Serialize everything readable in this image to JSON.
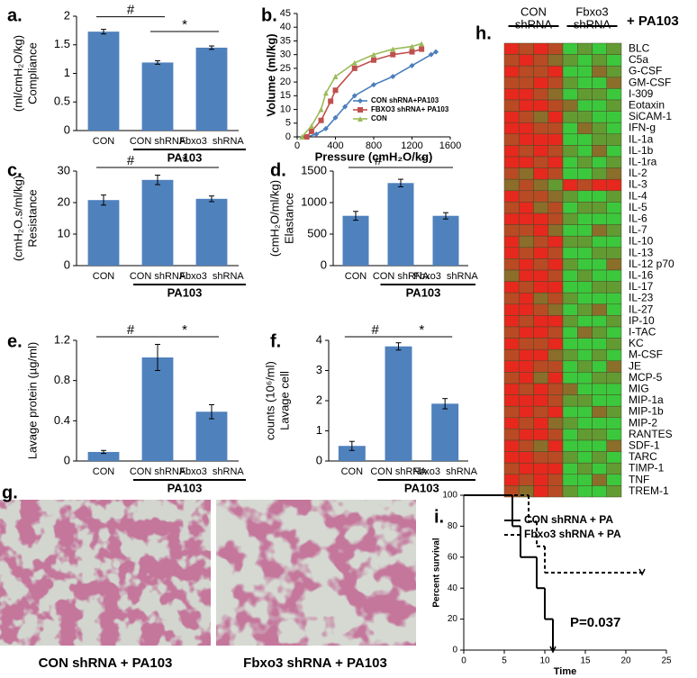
{
  "chart_data": [
    {
      "type": "bar",
      "letter": "a.",
      "ylabel": [
        "Compliance",
        "(ml/cmH₂O/kg)"
      ],
      "categories": [
        "CON",
        "CON shRNA",
        "Fbxo3  shRNA"
      ],
      "values": [
        1.73,
        1.19,
        1.45
      ],
      "errors": [
        0.04,
        0.03,
        0.03
      ],
      "ylim": [
        0,
        2
      ],
      "yticks": [
        0,
        0.5,
        1,
        1.5,
        2
      ],
      "color": "#4f81bd",
      "group_label": "PA103",
      "annotations": [
        "#",
        "*"
      ]
    },
    {
      "type": "line",
      "letter": "b.",
      "xlabel": "Pressure (cmH₂O/kg)",
      "ylabel": "Volume (ml/kg)",
      "xlim": [
        0,
        1600
      ],
      "xticks": [
        0,
        400,
        800,
        1200,
        1600
      ],
      "ylim": [
        0,
        45
      ],
      "yticks": [
        0,
        5,
        10,
        15,
        20,
        25,
        30,
        35,
        40,
        45
      ],
      "series": [
        {
          "name": "CON shRNA+PA103",
          "color": "#4a7ebb",
          "marker": "diamond",
          "x": [
            100,
            200,
            300,
            400,
            500,
            600,
            800,
            1000,
            1200,
            1400,
            1450
          ],
          "values": [
            0,
            1,
            3,
            7,
            11,
            15,
            19,
            22,
            26,
            30,
            31
          ]
        },
        {
          "name": "FBXO3 shRNA+ PA103",
          "color": "#c0504d",
          "marker": "square",
          "x": [
            100,
            150,
            250,
            350,
            400,
            600,
            800,
            1000,
            1200,
            1300
          ],
          "values": [
            0,
            2,
            6,
            13,
            17,
            25,
            28,
            30,
            31,
            32
          ]
        },
        {
          "name": "CON",
          "color": "#9bbb59",
          "marker": "triangle",
          "x": [
            50,
            150,
            250,
            300,
            400,
            600,
            800,
            1000,
            1200,
            1300
          ],
          "values": [
            0,
            4,
            10,
            16,
            22,
            27,
            30,
            32,
            33,
            34
          ]
        }
      ]
    },
    {
      "type": "bar",
      "letter": "c.",
      "ylabel": [
        "Resistance",
        "(cmH₂O.s/ml/kg)"
      ],
      "categories": [
        "CON",
        "CON shRNA",
        "Fbxo3  shRNA"
      ],
      "values": [
        20.8,
        27.2,
        21.2
      ],
      "errors": [
        1.6,
        1.5,
        0.9
      ],
      "ylim": [
        0,
        30
      ],
      "yticks": [
        0,
        10,
        20,
        30
      ],
      "color": "#4f81bd",
      "group_label": "PA103",
      "annotations": [
        "#",
        "*"
      ]
    },
    {
      "type": "bar",
      "letter": "d.",
      "ylabel": [
        "Elastance",
        "(cmH₂O/ml/kg)"
      ],
      "categories": [
        "CON",
        "CON shRNA",
        "Fbxo3  shRNA"
      ],
      "values": [
        790,
        1310,
        790
      ],
      "errors": [
        70,
        60,
        50
      ],
      "ylim": [
        0,
        1500
      ],
      "yticks": [
        0,
        500,
        1000,
        1500
      ],
      "color": "#4f81bd",
      "group_label": "PA103",
      "annotations": [
        "#",
        "*"
      ]
    },
    {
      "type": "bar",
      "letter": "e.",
      "ylabel": [
        "Lavage protein (µg/ml)"
      ],
      "categories": [
        "CON",
        "CON shRNA",
        "Fbxo3  shRNA"
      ],
      "values": [
        0.09,
        1.03,
        0.49
      ],
      "errors": [
        0.015,
        0.13,
        0.07
      ],
      "ylim": [
        0,
        1.2
      ],
      "yticks": [
        0,
        0.4,
        0.8,
        1.2
      ],
      "color": "#4f81bd",
      "group_label": "PA103",
      "annotations": [
        "#",
        "*"
      ]
    },
    {
      "type": "bar",
      "letter": "f.",
      "ylabel": [
        "Lavage cell",
        "counts (10⁶/ml)"
      ],
      "categories": [
        "CON",
        "CON shRNA",
        "Fbxo3  shRNA"
      ],
      "values": [
        0.5,
        3.8,
        1.9
      ],
      "errors": [
        0.15,
        0.12,
        0.17
      ],
      "ylim": [
        0,
        4
      ],
      "yticks": [
        0,
        1,
        2,
        3,
        4
      ],
      "color": "#4f81bd",
      "group_label": "PA103",
      "annotations": [
        "#",
        "*"
      ]
    },
    {
      "type": "heatmap",
      "letter": "h.",
      "group_labels": [
        [
          "CON",
          "shRNA"
        ],
        [
          "Fbxo3",
          "shRNA"
        ]
      ],
      "group_suffix": "+ PA103",
      "vlim": [
        -1,
        1
      ],
      "colors": [
        "#3cc83c",
        "#8a6e2a",
        "#e6281e"
      ],
      "rows": [
        "BLC",
        "C5a",
        "G-CSF",
        "GM-CSF",
        "I-309",
        "Eotaxin",
        "SiCAM-1",
        "IFN-g",
        "IL-1a",
        "IL-1b",
        "IL-1ra",
        "IL-2",
        "IL-3",
        "IL-4",
        "IL-5",
        "IL-6",
        "IL-7",
        "IL-10",
        "IL-13",
        "IL-12 p70",
        "IL-16",
        "IL-17",
        "IL-23",
        "IL-27",
        "IP-10",
        "I-TAC",
        "KC",
        "M-CSF",
        "JE",
        "MCP-5",
        "MIG",
        "MIP-1a",
        "MIP-1b",
        "MIP-2",
        "RANTES",
        "SDF-1",
        "TARC",
        "TIMP-1",
        "TNF",
        "TREM-1"
      ],
      "values": [
        [
          1,
          0.5,
          1,
          0.5,
          -1,
          -0.5,
          -1,
          -0.5
        ],
        [
          0.5,
          1,
          0.5,
          0,
          -0.5,
          -1,
          -0.5,
          -1
        ],
        [
          1,
          0.5,
          0.5,
          1,
          -1,
          -1,
          0,
          -0.5
        ],
        [
          0.5,
          0.5,
          1,
          0.5,
          -0.5,
          -1,
          -1,
          0
        ],
        [
          1,
          1,
          0.5,
          0,
          -1,
          -0.5,
          -0.5,
          -1
        ],
        [
          0.5,
          1,
          1,
          0.5,
          0,
          -1,
          -1,
          -0.5
        ],
        [
          1,
          0.5,
          0,
          1,
          -0.5,
          -0.5,
          -1,
          -1
        ],
        [
          1,
          1,
          0.5,
          0.5,
          -1,
          0,
          -0.5,
          -1
        ],
        [
          0.5,
          1,
          1,
          1,
          -1,
          -1,
          -0.5,
          -0.5
        ],
        [
          1,
          0.5,
          1,
          0.5,
          -0.5,
          -1,
          0,
          -1
        ],
        [
          1,
          1,
          0.5,
          1,
          -1,
          -0.5,
          -1,
          -0.5
        ],
        [
          0.5,
          0,
          1,
          0.5,
          -1,
          -1,
          -0.5,
          0
        ],
        [
          0,
          0.5,
          0,
          -0.5,
          1,
          0.5,
          1,
          1
        ],
        [
          1,
          0.5,
          0.5,
          0,
          -0.5,
          -1,
          -1,
          -0.5
        ],
        [
          0.5,
          1,
          0,
          0.5,
          -1,
          -0.5,
          -0.5,
          -1
        ],
        [
          1,
          1,
          1,
          0.5,
          -0.5,
          -1,
          -1,
          -1
        ],
        [
          0.5,
          0.5,
          1,
          0,
          -1,
          -1,
          0,
          -0.5
        ],
        [
          1,
          0,
          0.5,
          1,
          -0.5,
          -0.5,
          -1,
          -1
        ],
        [
          1,
          0.5,
          1,
          0.5,
          -1,
          -1,
          -0.5,
          -0.5
        ],
        [
          0.5,
          1,
          0.5,
          1,
          -0.5,
          -1,
          -1,
          0
        ],
        [
          0,
          1,
          1,
          0.5,
          -1,
          -0.5,
          -1,
          -1
        ],
        [
          1,
          0.5,
          1,
          1,
          -1,
          -1,
          -0.5,
          -0.5
        ],
        [
          0.5,
          1,
          0,
          0.5,
          -0.5,
          -1,
          -1,
          -1
        ],
        [
          1,
          1,
          0.5,
          0,
          -1,
          -0.5,
          0,
          -1
        ],
        [
          1,
          0.5,
          1,
          1,
          -0.5,
          -1,
          -1,
          -0.5
        ],
        [
          0.5,
          1,
          1,
          0.5,
          -1,
          0,
          -0.5,
          -1
        ],
        [
          1,
          0.5,
          0.5,
          1,
          -1,
          -1,
          -1,
          -0.5
        ],
        [
          0.5,
          1,
          1,
          0,
          -0.5,
          -1,
          -0.5,
          -1
        ],
        [
          1,
          1,
          0.5,
          0.5,
          -1,
          -0.5,
          -1,
          0
        ],
        [
          0.5,
          1,
          0,
          1,
          -1,
          -1,
          -0.5,
          -0.5
        ],
        [
          1,
          0.5,
          1,
          0.5,
          0,
          -1,
          -1,
          -1
        ],
        [
          1,
          1,
          1,
          0.5,
          -0.5,
          -0.5,
          -1,
          -1
        ],
        [
          0.5,
          1,
          0.5,
          1,
          -1,
          -1,
          0,
          -0.5
        ],
        [
          1,
          0.5,
          1,
          0,
          -0.5,
          -1,
          -1,
          -1
        ],
        [
          0.5,
          1,
          1,
          0.5,
          -1,
          -0.5,
          -0.5,
          -1
        ],
        [
          1,
          0.5,
          0,
          1,
          -1,
          -1,
          -1,
          0
        ],
        [
          1,
          1,
          0.5,
          0.5,
          -0.5,
          -1,
          -0.5,
          -1
        ],
        [
          0.5,
          1,
          1,
          1,
          -1,
          -0.5,
          -1,
          -0.5
        ],
        [
          1,
          0.5,
          1,
          0.5,
          -1,
          -1,
          0,
          -1
        ],
        [
          0.5,
          0,
          1,
          0.5,
          -0.5,
          -1,
          -1,
          -0.5
        ]
      ]
    },
    {
      "type": "survival",
      "letter": "i.",
      "xlabel": "Time",
      "ylabel": "Percent survival",
      "xlim": [
        0,
        25
      ],
      "xticks": [
        0,
        5,
        10,
        15,
        20,
        25
      ],
      "ylim": [
        0,
        100
      ],
      "yticks": [
        0,
        20,
        40,
        60,
        80,
        100
      ],
      "annotation": "P=0.037",
      "series": [
        {
          "name": "CON shRNA + PA",
          "color": "#000000",
          "style": "solid",
          "x": [
            0,
            6,
            7,
            9,
            10,
            11
          ],
          "values": [
            100,
            80,
            60,
            40,
            20,
            0
          ]
        },
        {
          "name": "Fbxo3 shRNA + PA",
          "color": "#000000",
          "style": "dashed",
          "x": [
            0,
            8,
            9,
            10,
            22
          ],
          "values": [
            100,
            83,
            67,
            50,
            50
          ]
        }
      ]
    }
  ],
  "panel_g": {
    "letter": "g.",
    "labels": [
      "CON shRNA + PA103",
      "Fbxo3 shRNA + PA103"
    ]
  }
}
